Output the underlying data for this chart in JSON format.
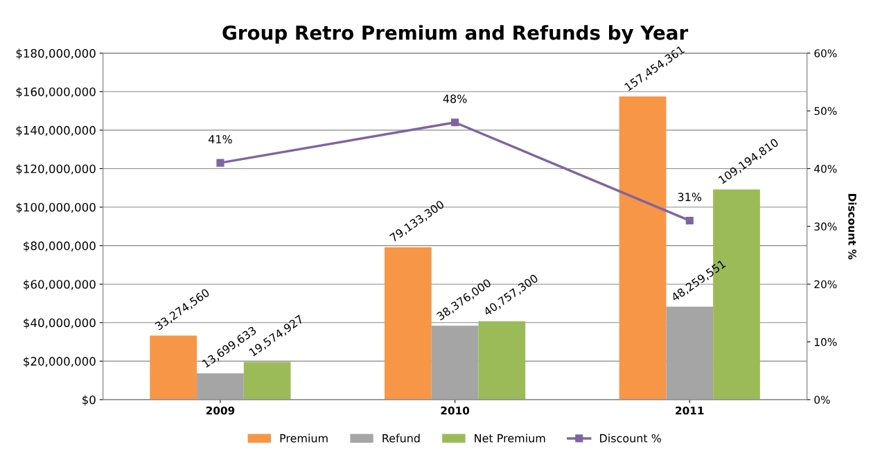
{
  "chart_data": {
    "type": "bar",
    "title": "Group Retro Premium and Refunds by Year",
    "y2label": "Discount %",
    "categories": [
      "2009",
      "2010",
      "2011"
    ],
    "series": [
      {
        "name": "Premium",
        "color": "#f79646",
        "values": [
          33274560,
          79133300,
          157454361
        ],
        "value_labels": [
          "33,274,560",
          "79,133,300",
          "157,454,361"
        ]
      },
      {
        "name": "Refund",
        "color": "#a5a5a5",
        "values": [
          13699633,
          38376000,
          48259551
        ],
        "value_labels": [
          "13,699,633",
          "38,376,000",
          "48,259,551"
        ]
      },
      {
        "name": "Net Premium",
        "color": "#9bbb59",
        "values": [
          19574927,
          40757300,
          109194810
        ],
        "value_labels": [
          "19,574,927",
          "40,757,300",
          "109,194,810"
        ]
      },
      {
        "name": "Discount %",
        "type": "line",
        "axis": "y2",
        "color": "#8064a2",
        "values": [
          41,
          48,
          31
        ],
        "value_labels": [
          "41%",
          "48%",
          "31%"
        ]
      }
    ],
    "ylim": [
      0,
      180000000
    ],
    "yticks": [
      {
        "value": 0,
        "label": "$0"
      },
      {
        "value": 20000000,
        "label": "$20,000,000"
      },
      {
        "value": 40000000,
        "label": "$40,000,000"
      },
      {
        "value": 60000000,
        "label": "$60,000,000"
      },
      {
        "value": 80000000,
        "label": "$80,000,000"
      },
      {
        "value": 100000000,
        "label": "$100,000,000"
      },
      {
        "value": 120000000,
        "label": "$120,000,000"
      },
      {
        "value": 140000000,
        "label": "$140,000,000"
      },
      {
        "value": 160000000,
        "label": "$160,000,000"
      },
      {
        "value": 180000000,
        "label": "$180,000,000"
      }
    ],
    "y2lim": [
      0,
      60
    ],
    "y2ticks": [
      {
        "value": 0,
        "label": "0%"
      },
      {
        "value": 10,
        "label": "10%"
      },
      {
        "value": 20,
        "label": "20%"
      },
      {
        "value": 30,
        "label": "30%"
      },
      {
        "value": 40,
        "label": "40%"
      },
      {
        "value": 50,
        "label": "50%"
      },
      {
        "value": 60,
        "label": "60%"
      }
    ],
    "grid": "y",
    "legend": "bottom",
    "marker": "square",
    "line_style": "solid"
  }
}
